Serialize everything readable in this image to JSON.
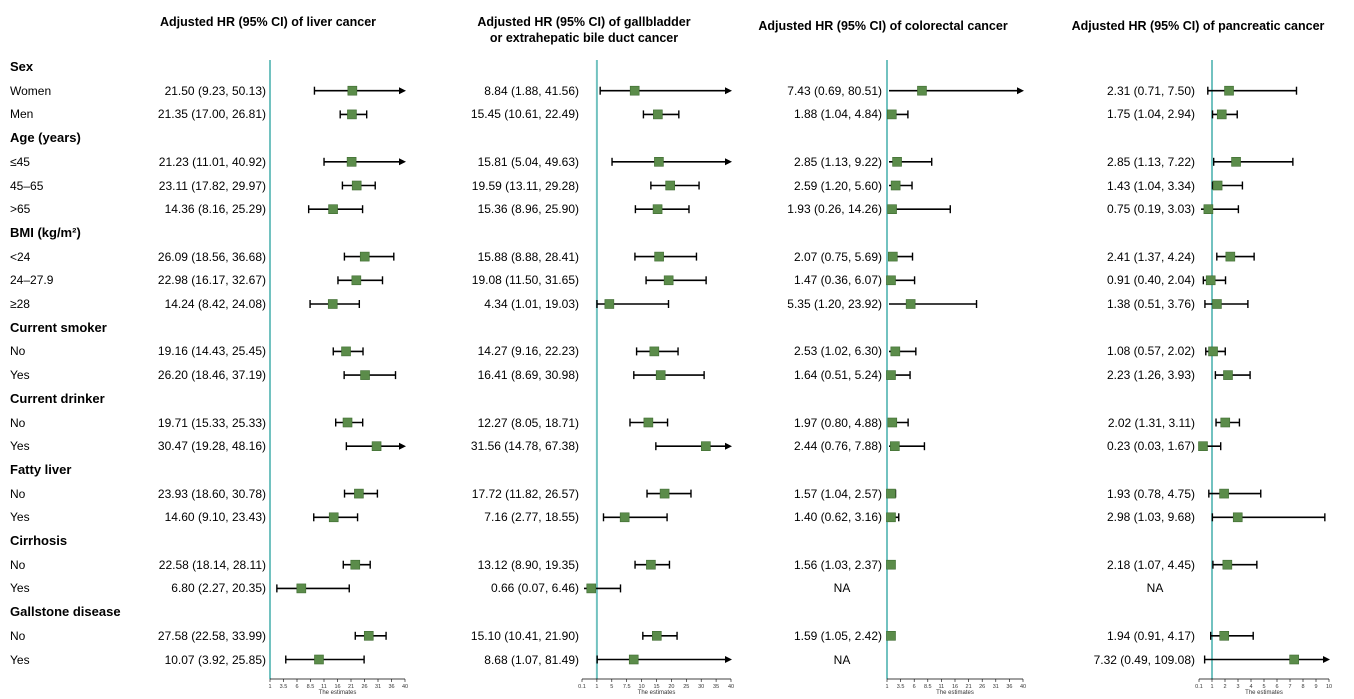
{
  "chart_data": {
    "type": "forest",
    "marker_color": "#5b8c4a",
    "reference_line_color": "#72c2c0",
    "row_labels": [
      {
        "text": "Sex",
        "kind": "group"
      },
      {
        "text": "Women",
        "kind": "sub"
      },
      {
        "text": "Men",
        "kind": "sub"
      },
      {
        "text": "Age (years)",
        "kind": "group"
      },
      {
        "text": "≤45",
        "kind": "sub"
      },
      {
        "text": "45–65",
        "kind": "sub"
      },
      {
        "text": ">65",
        "kind": "sub"
      },
      {
        "text": "BMI  (kg/m²)",
        "kind": "group"
      },
      {
        "text": "<24",
        "kind": "sub"
      },
      {
        "text": "24–27.9",
        "kind": "sub"
      },
      {
        "text": "≥28",
        "kind": "sub"
      },
      {
        "text": "Current smoker",
        "kind": "group"
      },
      {
        "text": "No",
        "kind": "sub"
      },
      {
        "text": "Yes",
        "kind": "sub"
      },
      {
        "text": "Current drinker",
        "kind": "group"
      },
      {
        "text": "No",
        "kind": "sub"
      },
      {
        "text": "Yes",
        "kind": "sub"
      },
      {
        "text": "Fatty liver",
        "kind": "group"
      },
      {
        "text": "No",
        "kind": "sub"
      },
      {
        "text": "Yes",
        "kind": "sub"
      },
      {
        "text": "Cirrhosis",
        "kind": "group"
      },
      {
        "text": "No",
        "kind": "sub"
      },
      {
        "text": "Yes",
        "kind": "sub"
      },
      {
        "text": "Gallstone disease",
        "kind": "group"
      },
      {
        "text": "No",
        "kind": "sub"
      },
      {
        "text": "Yes",
        "kind": "sub"
      }
    ],
    "panels": [
      {
        "title": "Adjusted HR (95% CI) of liver cancer",
        "xlabel": "The estimates",
        "xlim": [
          1,
          40
        ],
        "reference": 1,
        "tick_labels": [
          "1",
          "3.5",
          "6",
          "8.5",
          "11",
          "16",
          "21",
          "26",
          "31",
          "36",
          "40"
        ],
        "tick_values": [
          1,
          3.5,
          6,
          8.5,
          11,
          16,
          21,
          26,
          31,
          36,
          40
        ],
        "rows": [
          {
            "text": "21.50 (9.23, 50.13)",
            "hr": 21.5,
            "lo": 9.23,
            "hi": 50.13
          },
          {
            "text": "21.35 (17.00, 26.81)",
            "hr": 21.35,
            "lo": 17.0,
            "hi": 26.81
          },
          {
            "text": "21.23 (11.01, 40.92)",
            "hr": 21.23,
            "lo": 11.01,
            "hi": 40.92
          },
          {
            "text": "23.11 (17.82, 29.97)",
            "hr": 23.11,
            "lo": 17.82,
            "hi": 29.97
          },
          {
            "text": "14.36 (8.16, 25.29)",
            "hr": 14.36,
            "lo": 8.16,
            "hi": 25.29
          },
          {
            "text": "26.09 (18.56, 36.68)",
            "hr": 26.09,
            "lo": 18.56,
            "hi": 36.68
          },
          {
            "text": "22.98 (16.17, 32.67)",
            "hr": 22.98,
            "lo": 16.17,
            "hi": 32.67
          },
          {
            "text": "14.24 (8.42, 24.08)",
            "hr": 14.24,
            "lo": 8.42,
            "hi": 24.08
          },
          {
            "text": "19.16 (14.43, 25.45)",
            "hr": 19.16,
            "lo": 14.43,
            "hi": 25.45
          },
          {
            "text": "26.20 (18.46, 37.19)",
            "hr": 26.2,
            "lo": 18.46,
            "hi": 37.19
          },
          {
            "text": "19.71 (15.33, 25.33)",
            "hr": 19.71,
            "lo": 15.33,
            "hi": 25.33
          },
          {
            "text": "30.47 (19.28, 48.16)",
            "hr": 30.47,
            "lo": 19.28,
            "hi": 48.16
          },
          {
            "text": "23.93 (18.60, 30.78)",
            "hr": 23.93,
            "lo": 18.6,
            "hi": 30.78
          },
          {
            "text": "14.60 (9.10, 23.43)",
            "hr": 14.6,
            "lo": 9.1,
            "hi": 23.43
          },
          {
            "text": "22.58 (18.14, 28.11)",
            "hr": 22.58,
            "lo": 18.14,
            "hi": 28.11
          },
          {
            "text": "6.80 (2.27, 20.35)",
            "hr": 6.8,
            "lo": 2.27,
            "hi": 20.35
          },
          {
            "text": "27.58 (22.58, 33.99)",
            "hr": 27.58,
            "lo": 22.58,
            "hi": 33.99
          },
          {
            "text": "10.07 (3.92, 25.85)",
            "hr": 10.07,
            "lo": 3.92,
            "hi": 25.85
          }
        ]
      },
      {
        "title": "Adjusted HR (95% CI) of gallbladder\nor extrahepatic bile duct cancer",
        "xlabel": "The estimates",
        "xlim": [
          0.1,
          40
        ],
        "reference": 1,
        "tick_labels": [
          "0.1",
          "1",
          "5",
          "7.5",
          "10",
          "15",
          "20",
          "25",
          "30",
          "35",
          "40"
        ],
        "tick_values": [
          0.1,
          1,
          5,
          7.5,
          10,
          15,
          20,
          25,
          30,
          35,
          40
        ],
        "rows": [
          {
            "text": "8.84 (1.88, 41.56)",
            "hr": 8.84,
            "lo": 1.88,
            "hi": 41.56
          },
          {
            "text": "15.45 (10.61, 22.49)",
            "hr": 15.45,
            "lo": 10.61,
            "hi": 22.49
          },
          {
            "text": "15.81 (5.04, 49.63)",
            "hr": 15.81,
            "lo": 5.04,
            "hi": 49.63
          },
          {
            "text": "19.59 (13.11, 29.28)",
            "hr": 19.59,
            "lo": 13.11,
            "hi": 29.28
          },
          {
            "text": "15.36 (8.96, 25.90)",
            "hr": 15.36,
            "lo": 8.96,
            "hi": 25.9
          },
          {
            "text": "15.88 (8.88, 28.41)",
            "hr": 15.88,
            "lo": 8.88,
            "hi": 28.41
          },
          {
            "text": "19.08 (11.50, 31.65)",
            "hr": 19.08,
            "lo": 11.5,
            "hi": 31.65
          },
          {
            "text": "4.34 (1.01, 19.03)",
            "hr": 4.34,
            "lo": 1.01,
            "hi": 19.03
          },
          {
            "text": "14.27 (9.16, 22.23)",
            "hr": 14.27,
            "lo": 9.16,
            "hi": 22.23
          },
          {
            "text": "16.41 (8.69, 30.98)",
            "hr": 16.41,
            "lo": 8.69,
            "hi": 30.98
          },
          {
            "text": "12.27 (8.05, 18.71)",
            "hr": 12.27,
            "lo": 8.05,
            "hi": 18.71
          },
          {
            "text": "31.56 (14.78, 67.38)",
            "hr": 31.56,
            "lo": 14.78,
            "hi": 67.38
          },
          {
            "text": "17.72 (11.82, 26.57)",
            "hr": 17.72,
            "lo": 11.82,
            "hi": 26.57
          },
          {
            "text": "7.16 (2.77, 18.55)",
            "hr": 7.16,
            "lo": 2.77,
            "hi": 18.55
          },
          {
            "text": "13.12 (8.90, 19.35)",
            "hr": 13.12,
            "lo": 8.9,
            "hi": 19.35
          },
          {
            "text": "0.66 (0.07, 6.46)",
            "hr": 0.66,
            "lo": 0.07,
            "hi": 6.46
          },
          {
            "text": "15.10 (10.41, 21.90)",
            "hr": 15.1,
            "lo": 10.41,
            "hi": 21.9
          },
          {
            "text": "8.68 (1.07, 81.49)",
            "hr": 8.68,
            "lo": 1.07,
            "hi": 81.49
          }
        ]
      },
      {
        "title": "Adjusted HR (95% CI) of colorectal cancer",
        "xlabel": "The estimates",
        "xlim": [
          1,
          40
        ],
        "reference": 1,
        "tick_labels": [
          "1",
          "3.5",
          "6",
          "8.5",
          "11",
          "16",
          "21",
          "26",
          "31",
          "36",
          "40"
        ],
        "tick_values": [
          1,
          3.5,
          6,
          8.5,
          11,
          16,
          21,
          26,
          31,
          36,
          40
        ],
        "rows": [
          {
            "text": "7.43 (0.69, 80.51)",
            "hr": 7.43,
            "lo": 0.69,
            "hi": 80.51
          },
          {
            "text": "1.88 (1.04, 4.84)",
            "hr": 1.88,
            "lo": 1.04,
            "hi": 4.84
          },
          {
            "text": "2.85 (1.13, 9.22)",
            "hr": 2.85,
            "lo": 1.13,
            "hi": 9.22
          },
          {
            "text": "2.59 (1.20, 5.60)",
            "hr": 2.59,
            "lo": 1.2,
            "hi": 5.6
          },
          {
            "text": "1.93 (0.26, 14.26)",
            "hr": 1.93,
            "lo": 0.26,
            "hi": 14.26
          },
          {
            "text": "2.07 (0.75, 5.69)",
            "hr": 2.07,
            "lo": 0.75,
            "hi": 5.69
          },
          {
            "text": "1.47 (0.36, 6.07)",
            "hr": 1.47,
            "lo": 0.36,
            "hi": 6.07
          },
          {
            "text": "5.35 (1.20, 23.92)",
            "hr": 5.35,
            "lo": 1.2,
            "hi": 23.92
          },
          {
            "text": "2.53 (1.02, 6.30)",
            "hr": 2.53,
            "lo": 1.02,
            "hi": 6.3
          },
          {
            "text": "1.64 (0.51, 5.24)",
            "hr": 1.64,
            "lo": 0.51,
            "hi": 5.24
          },
          {
            "text": "1.97 (0.80, 4.88)",
            "hr": 1.97,
            "lo": 0.8,
            "hi": 4.88
          },
          {
            "text": "2.44 (0.76, 7.88)",
            "hr": 2.44,
            "lo": 0.76,
            "hi": 7.88
          },
          {
            "text": "1.57 (1.04, 2.57)",
            "hr": 1.57,
            "lo": 1.04,
            "hi": 2.57
          },
          {
            "text": "1.40 (0.62, 3.16)",
            "hr": 1.4,
            "lo": 0.62,
            "hi": 3.16
          },
          {
            "text": "1.56 (1.03, 2.37)",
            "hr": 1.56,
            "lo": 1.03,
            "hi": 2.37
          },
          {
            "text": "NA"
          },
          {
            "text": "1.59 (1.05, 2.42)",
            "hr": 1.59,
            "lo": 1.05,
            "hi": 2.42
          },
          {
            "text": "NA"
          }
        ]
      },
      {
        "title": "Adjusted HR (95% CI) of pancreatic cancer",
        "xlabel": "The estimates",
        "xlim": [
          0.1,
          10
        ],
        "reference": 1,
        "tick_labels": [
          "0.1",
          "1",
          "2",
          "3",
          "4",
          "5",
          "6",
          "7",
          "8",
          "9",
          "10"
        ],
        "tick_values": [
          0.1,
          1,
          2,
          3,
          4,
          5,
          6,
          7,
          8,
          9,
          10
        ],
        "rows": [
          {
            "text": "2.31 (0.71, 7.50)",
            "hr": 2.31,
            "lo": 0.71,
            "hi": 7.5
          },
          {
            "text": "1.75 (1.04, 2.94)",
            "hr": 1.75,
            "lo": 1.04,
            "hi": 2.94
          },
          {
            "text": "2.85 (1.13, 7.22)",
            "hr": 2.85,
            "lo": 1.13,
            "hi": 7.22
          },
          {
            "text": "1.43 (1.04, 3.34)",
            "hr": 1.43,
            "lo": 1.04,
            "hi": 3.34
          },
          {
            "text": "0.75 (0.19, 3.03)",
            "hr": 0.75,
            "lo": 0.19,
            "hi": 3.03
          },
          {
            "text": "2.41 (1.37, 4.24)",
            "hr": 2.41,
            "lo": 1.37,
            "hi": 4.24
          },
          {
            "text": "0.91 (0.40, 2.04)",
            "hr": 0.91,
            "lo": 0.4,
            "hi": 2.04
          },
          {
            "text": "1.38 (0.51, 3.76)",
            "hr": 1.38,
            "lo": 0.51,
            "hi": 3.76
          },
          {
            "text": "1.08 (0.57, 2.02)",
            "hr": 1.08,
            "lo": 0.57,
            "hi": 2.02
          },
          {
            "text": "2.23 (1.26, 3.93)",
            "hr": 2.23,
            "lo": 1.26,
            "hi": 3.93
          },
          {
            "text": "2.02 (1.31, 3.11)",
            "hr": 2.02,
            "lo": 1.31,
            "hi": 3.11
          },
          {
            "text": "0.23 (0.03, 1.67)",
            "hr": 0.23,
            "lo": 0.03,
            "hi": 1.67
          },
          {
            "text": "1.93 (0.78, 4.75)",
            "hr": 1.93,
            "lo": 0.78,
            "hi": 4.75
          },
          {
            "text": "2.98 (1.03, 9.68)",
            "hr": 2.98,
            "lo": 1.03,
            "hi": 9.68
          },
          {
            "text": "2.18 (1.07, 4.45)",
            "hr": 2.18,
            "lo": 1.07,
            "hi": 4.45
          },
          {
            "text": "NA"
          },
          {
            "text": "1.94 (0.91, 4.17)",
            "hr": 1.94,
            "lo": 0.91,
            "hi": 4.17
          },
          {
            "text": "7.32 (0.49, 109.08)",
            "hr": 7.32,
            "lo": 0.49,
            "hi": 109.08
          }
        ]
      }
    ]
  }
}
